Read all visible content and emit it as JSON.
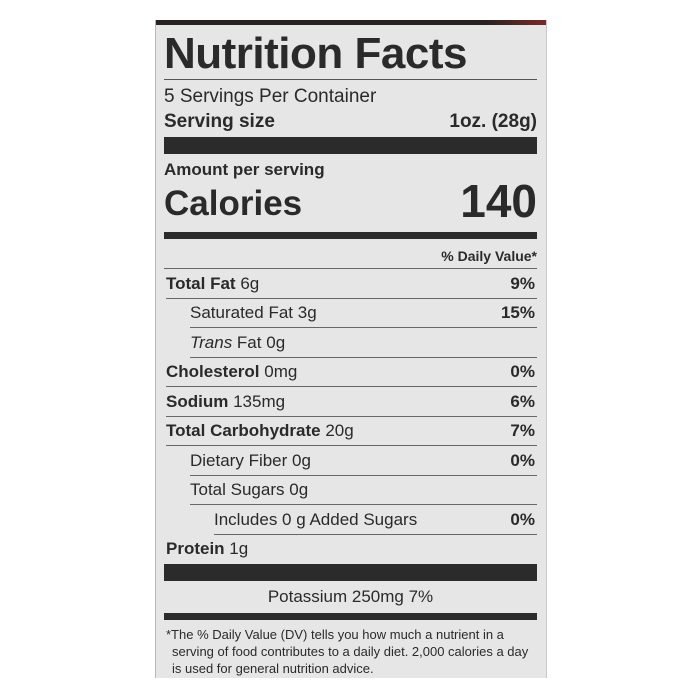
{
  "label": {
    "title": "Nutrition Facts",
    "servings_per_container": "5 Servings Per Container",
    "serving_size_label": "Serving size",
    "serving_size_value": "1oz. (28g)",
    "amount_per_serving": "Amount per serving",
    "calories_label": "Calories",
    "calories_value": "140",
    "daily_value_header": "% Daily Value*",
    "rows": [
      {
        "name": "Total Fat",
        "amount": "6g",
        "dv": "9%",
        "bold": true,
        "indent": 0
      },
      {
        "name": "Saturated Fat",
        "amount": "3g",
        "dv": "15%",
        "bold": false,
        "indent": 1
      },
      {
        "name": "Trans",
        "name_suffix": " Fat",
        "amount": "0g",
        "dv": "",
        "bold": false,
        "indent": 1,
        "italic_prefix": true
      },
      {
        "name": "Cholesterol",
        "amount": "0mg",
        "dv": "0%",
        "bold": true,
        "indent": 0
      },
      {
        "name": "Sodium",
        "amount": "135mg",
        "dv": "6%",
        "bold": true,
        "indent": 0
      },
      {
        "name": "Total Carbohydrate",
        "amount": "20g",
        "dv": "7%",
        "bold": true,
        "indent": 0
      },
      {
        "name": "Dietary Fiber",
        "amount": "0g",
        "dv": "0%",
        "bold": false,
        "indent": 1
      },
      {
        "name": "Total Sugars",
        "amount": "0g",
        "dv": "",
        "bold": false,
        "indent": 1
      },
      {
        "name": "Includes 0 g Added Sugars",
        "amount": "",
        "dv": "0%",
        "bold": false,
        "indent": 2
      },
      {
        "name": "Protein",
        "amount": "1g",
        "dv": "",
        "bold": true,
        "indent": 0
      }
    ],
    "potassium": "Potassium 250mg 7%",
    "footnote": "*The % Daily Value (DV) tells you how much a nutrient in a serving of food contributes to a daily diet. 2,000 calories a day is used for general nutrition advice."
  }
}
